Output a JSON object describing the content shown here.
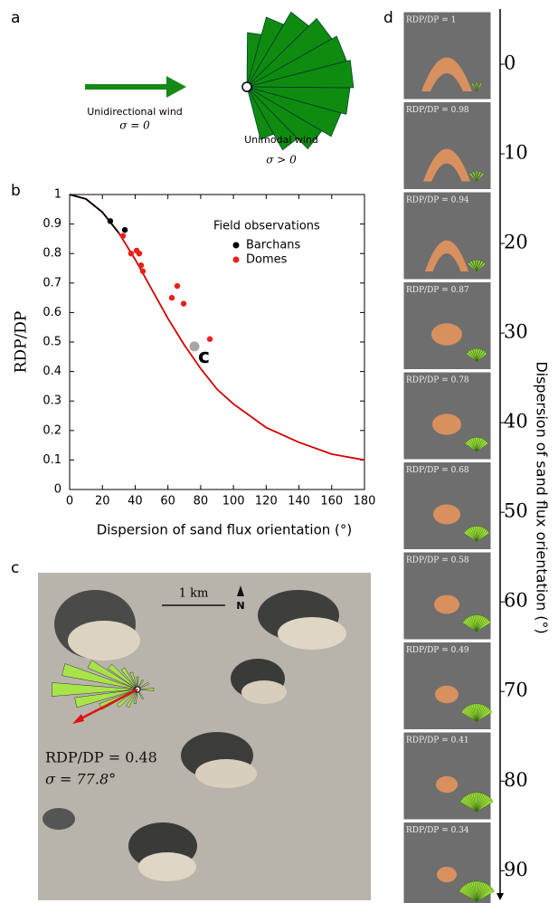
{
  "panels": {
    "labels": [
      "a",
      "b",
      "c",
      "d"
    ]
  },
  "panel_a": {
    "left_label": "Unidirectional wind",
    "left_sigma": "σ = 0",
    "right_label": "Unimodal wind",
    "right_sigma": "σ > 0"
  },
  "panel_c": {
    "scale": "1 km",
    "north": "N",
    "ratio": "RDP/DP = 0.48",
    "sigma": "σ = 77.8°"
  },
  "panel_d": {
    "frames": [
      "RDP/DP = 1",
      "RDP/DP = 0.98",
      "RDP/DP = 0.94",
      "RDP/DP = 0.87",
      "RDP/DP = 0.78",
      "RDP/DP = 0.68",
      "RDP/DP = 0.58",
      "RDP/DP = 0.49",
      "RDP/DP = 0.41",
      "RDP/DP = 0.34"
    ]
  },
  "chart_data": [
    {
      "type": "line",
      "xlabel": "Dispersion of sand flux orientation  (°)",
      "ylabel": "RDP/DP",
      "legend_title": "Field observations",
      "xlim": [
        0,
        180
      ],
      "ylim": [
        0,
        1
      ],
      "xticks": [
        0,
        20,
        40,
        60,
        80,
        100,
        120,
        140,
        160,
        180
      ],
      "yticks": [
        0,
        0.1,
        0.2,
        0.3,
        0.4,
        0.5,
        0.6,
        0.7,
        0.8,
        0.9,
        1
      ],
      "series": [
        {
          "type": "line",
          "color": "#d40000",
          "x": [
            0,
            10,
            20,
            30,
            40,
            50,
            60,
            70,
            80,
            90,
            100,
            120,
            140,
            160,
            180
          ],
          "values": [
            1,
            0.985,
            0.94,
            0.87,
            0.78,
            0.68,
            0.58,
            0.49,
            0.41,
            0.34,
            0.29,
            0.21,
            0.16,
            0.12,
            0.1
          ]
        },
        {
          "type": "line",
          "color": "#000000",
          "x": [
            0,
            10,
            20,
            30
          ],
          "values": [
            1,
            0.985,
            0.94,
            0.87
          ]
        },
        {
          "type": "scatter",
          "name": "Barchans",
          "color": "#000000",
          "x": [
            24.8,
            33.7
          ],
          "values": [
            0.91,
            0.88
          ]
        },
        {
          "type": "scatter",
          "name": "Domes",
          "color": "#e8201c",
          "x": [
            32.6,
            37.5,
            40.9,
            42.5,
            43.6,
            44.7,
            62.4,
            65.7,
            69.6,
            85.6
          ],
          "values": [
            0.86,
            0.8,
            0.81,
            0.8,
            0.76,
            0.74,
            0.65,
            0.69,
            0.63,
            0.51
          ]
        }
      ],
      "annotations": [
        {
          "text": "c",
          "x": 76.2,
          "y": 0.485,
          "color": "#a6a6a6"
        }
      ]
    },
    {
      "type": "axis",
      "ylabel": "Dispersion of sand flux orientation  (°)",
      "ylim": [
        -6.16,
        93.3
      ],
      "yticks": [
        0,
        10,
        20,
        30,
        40,
        50,
        60,
        70,
        80,
        90
      ]
    }
  ]
}
